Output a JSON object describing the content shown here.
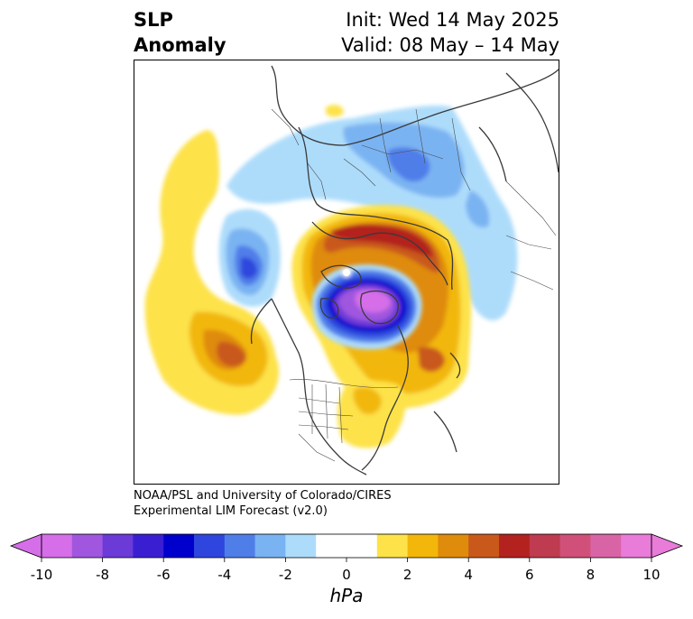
{
  "title": {
    "left_line1": "SLP",
    "left_line2": "Anomaly",
    "right_line1": "Init: Wed 14 May 2025",
    "right_line2": "Valid: 08 May – 14 May"
  },
  "credit": {
    "line1": "NOAA/PSL and University of Colorado/CIRES",
    "line2": "Experimental LIM Forecast (v2.0)"
  },
  "colorbar": {
    "unit_label": "hPa",
    "ticks": [
      "-10",
      "-8",
      "-6",
      "-4",
      "-2",
      "0",
      "2",
      "4",
      "6",
      "8",
      "10"
    ],
    "colors": [
      "#d56ee8",
      "#a056de",
      "#6c3ad7",
      "#3a1fd2",
      "#0000cc",
      "#2e46dd",
      "#4f7ee9",
      "#7ab3f2",
      "#addcfb",
      "#ffffff",
      "#ffffff",
      "#fde24a",
      "#f2b70a",
      "#df8b0b",
      "#c9591a",
      "#b3221f",
      "#bf3b4f",
      "#d0507a",
      "#d964a5",
      "#e97bd9"
    ]
  },
  "map": {
    "projection": "north-polar-stereographic",
    "field": "sea level pressure anomaly",
    "features": [
      "coastlines",
      "country-borders",
      "us-state-borders"
    ]
  }
}
